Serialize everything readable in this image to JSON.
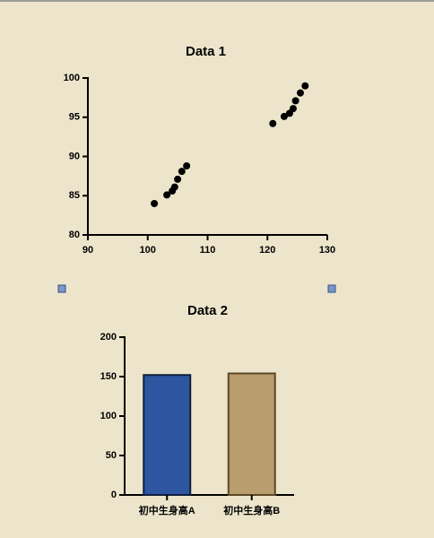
{
  "chart_data": [
    {
      "type": "scatter",
      "title": "Data 1",
      "color": "#000000",
      "x": [
        101.1,
        103.2,
        104.1,
        104.5,
        105.0,
        105.7,
        106.5,
        120.9,
        122.8,
        123.7,
        124.3,
        124.7,
        125.5,
        126.3
      ],
      "values": [
        84.0,
        85.1,
        85.6,
        86.1,
        87.1,
        88.1,
        88.8,
        94.2,
        95.1,
        95.5,
        96.1,
        97.1,
        98.1,
        99.0
      ],
      "xlim": [
        90,
        130
      ],
      "xticks": [
        90,
        100,
        110,
        120,
        130
      ],
      "ylim": [
        80,
        100
      ],
      "yticks": [
        80,
        85,
        90,
        95,
        100
      ]
    },
    {
      "type": "bar",
      "title": "Data 2",
      "categories": [
        "初中生身高A",
        "初中生身高B"
      ],
      "values": [
        152,
        154
      ],
      "colors": [
        "#2d55a0",
        "#b99d6f"
      ],
      "edgecolors": [
        "#0f1f3d",
        "#5c4725"
      ],
      "ylim": [
        0,
        200
      ],
      "yticks": [
        0,
        50,
        100,
        150,
        200
      ]
    }
  ]
}
